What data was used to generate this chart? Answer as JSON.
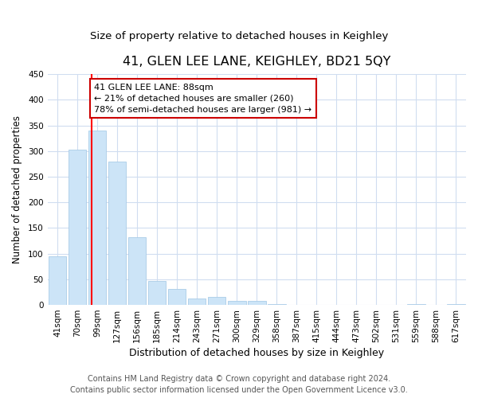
{
  "title": "41, GLEN LEE LANE, KEIGHLEY, BD21 5QY",
  "subtitle": "Size of property relative to detached houses in Keighley",
  "xlabel": "Distribution of detached houses by size in Keighley",
  "ylabel": "Number of detached properties",
  "bar_labels": [
    "41sqm",
    "70sqm",
    "99sqm",
    "127sqm",
    "156sqm",
    "185sqm",
    "214sqm",
    "243sqm",
    "271sqm",
    "300sqm",
    "329sqm",
    "358sqm",
    "387sqm",
    "415sqm",
    "444sqm",
    "473sqm",
    "502sqm",
    "531sqm",
    "559sqm",
    "588sqm",
    "617sqm"
  ],
  "bar_values": [
    95,
    303,
    340,
    280,
    132,
    47,
    31,
    13,
    15,
    8,
    8,
    1,
    0,
    0,
    0,
    0,
    0,
    0,
    2,
    0,
    2
  ],
  "bar_color": "#cce4f7",
  "bar_edge_color": "#aacce8",
  "red_line_x": 1.72,
  "annotation_title": "41 GLEN LEE LANE: 88sqm",
  "annotation_line1": "← 21% of detached houses are smaller (260)",
  "annotation_line2": "78% of semi-detached houses are larger (981) →",
  "annotation_box_color": "#ffffff",
  "annotation_box_edge": "#cc0000",
  "ylim": [
    0,
    450
  ],
  "yticks": [
    0,
    50,
    100,
    150,
    200,
    250,
    300,
    350,
    400,
    450
  ],
  "footer1": "Contains HM Land Registry data © Crown copyright and database right 2024.",
  "footer2": "Contains public sector information licensed under the Open Government Licence v3.0.",
  "background_color": "#ffffff",
  "grid_color": "#d0ddf0",
  "title_fontsize": 11.5,
  "subtitle_fontsize": 9.5,
  "xlabel_fontsize": 9,
  "ylabel_fontsize": 8.5,
  "tick_fontsize": 7.5,
  "annotation_fontsize": 8,
  "footer_fontsize": 7
}
